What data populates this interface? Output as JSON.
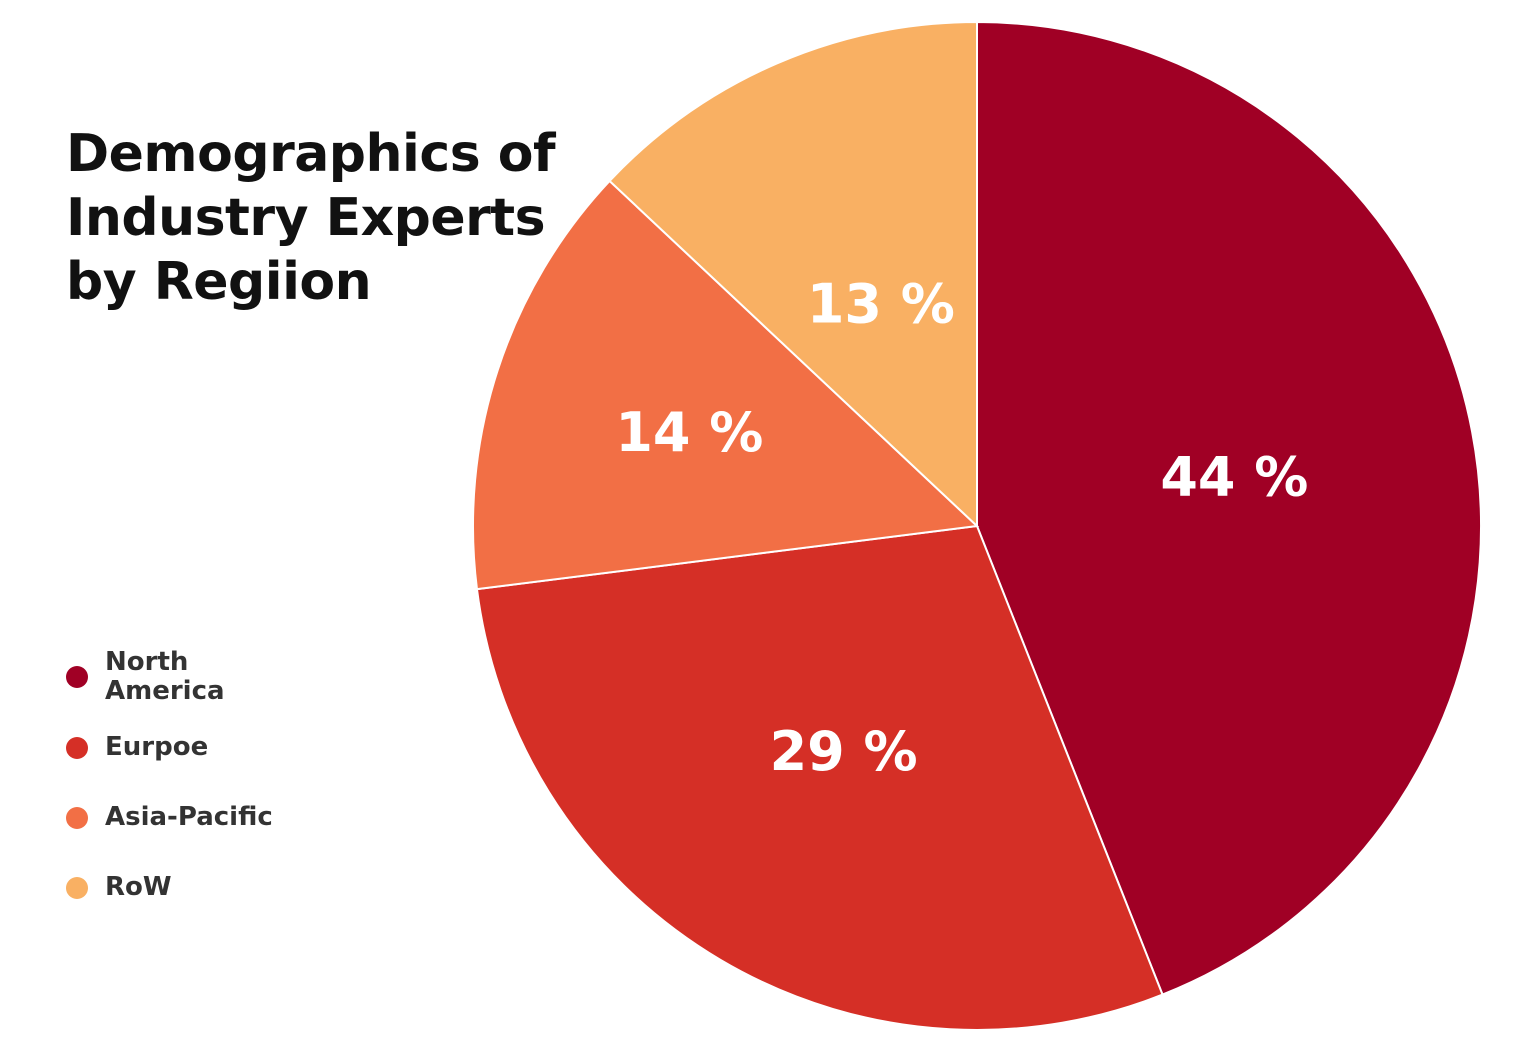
{
  "chart_data": {
    "type": "pie",
    "title": "Demographics of Industry Experts by Regiion",
    "title_lines": [
      "Demographics of",
      "Industry Experts",
      "by Regiion"
    ],
    "slices": [
      {
        "name": "North America",
        "value": 44,
        "label": "44 %",
        "color": "#a00025"
      },
      {
        "name": "Eurpoe",
        "value": 29,
        "label": "29 %",
        "color": "#d52f26"
      },
      {
        "name": "Asia-Pacific",
        "value": 14,
        "label": "14 %",
        "color": "#f26f45"
      },
      {
        "name": "RoW",
        "value": 13,
        "label": "13 %",
        "color": "#f9b063"
      }
    ],
    "legend_placement": "left"
  }
}
